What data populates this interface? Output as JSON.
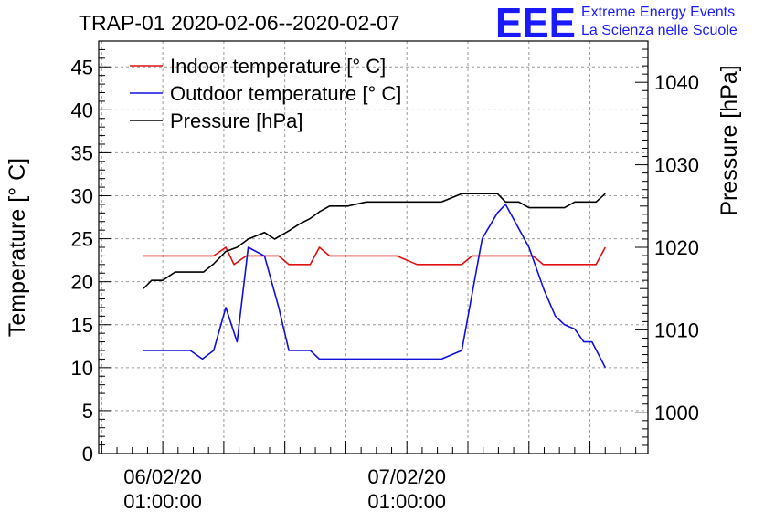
{
  "header": {
    "title": "TRAP-01 2020-02-06--2020-02-07",
    "logo_text": "EEE",
    "logo_line1": "Extreme Energy Events",
    "logo_line2": "La Scienza nelle Scuole"
  },
  "colors": {
    "indoor": "#e01010",
    "outdoor": "#1010e0",
    "pressure": "#000000",
    "logo": "#1a1aff"
  },
  "chart_data": {
    "type": "line",
    "title": "TRAP-01 2020-02-06--2020-02-07",
    "ylabel_left": "Temperature [° C]",
    "ylabel_right": "Pressure [hPa]",
    "ylim_left": [
      0,
      48
    ],
    "ylim_right": [
      995,
      1045
    ],
    "yticks_left": [
      "0",
      "5",
      "10",
      "15",
      "20",
      "25",
      "30",
      "35",
      "40",
      "45"
    ],
    "yticks_right": [
      "1000",
      "1010",
      "1020",
      "1030",
      "1040"
    ],
    "xticks": [
      {
        "t": 0,
        "line1": "06/02/20",
        "line2": "01:00:00"
      },
      {
        "t": 24,
        "line1": "07/02/20",
        "line2": "01:00:00"
      }
    ],
    "xlim": [
      -6.3,
      47.7
    ],
    "grid": true,
    "legend_position": "top-left",
    "legend": [
      {
        "label": "Indoor temperature [° C]",
        "series": "indoor"
      },
      {
        "label": "Outdoor temperature [° C]",
        "series": "outdoor"
      },
      {
        "label": "Pressure [hPa]",
        "series": "pressure"
      }
    ],
    "series": [
      {
        "name": "Indoor temperature [° C]",
        "key": "indoor",
        "axis": "left",
        "points": [
          [
            -1.9,
            23
          ],
          [
            5,
            23
          ],
          [
            6.2,
            24
          ],
          [
            7,
            22
          ],
          [
            8.2,
            23
          ],
          [
            11.4,
            23
          ],
          [
            12.4,
            22
          ],
          [
            14.5,
            22
          ],
          [
            15.4,
            24
          ],
          [
            16.4,
            23
          ],
          [
            23,
            23
          ],
          [
            25,
            22
          ],
          [
            29.4,
            22
          ],
          [
            30.4,
            23
          ],
          [
            36.4,
            23
          ],
          [
            37.4,
            22
          ],
          [
            42.6,
            22
          ],
          [
            43.5,
            24
          ]
        ]
      },
      {
        "name": "Outdoor temperature [° C]",
        "key": "outdoor",
        "axis": "left",
        "points": [
          [
            -1.9,
            12
          ],
          [
            2.7,
            12
          ],
          [
            3.9,
            11
          ],
          [
            5,
            12
          ],
          [
            6.2,
            17
          ],
          [
            7.3,
            13
          ],
          [
            8.4,
            24
          ],
          [
            10,
            23
          ],
          [
            11.4,
            17
          ],
          [
            12.4,
            12
          ],
          [
            14.5,
            12
          ],
          [
            15.4,
            11
          ],
          [
            27.4,
            11
          ],
          [
            29.4,
            12
          ],
          [
            31.4,
            25
          ],
          [
            32.9,
            28
          ],
          [
            33.7,
            29
          ],
          [
            36,
            24
          ],
          [
            37.5,
            19
          ],
          [
            38.6,
            16
          ],
          [
            39.5,
            15
          ],
          [
            40.5,
            14.5
          ],
          [
            41.4,
            13
          ],
          [
            42.2,
            13
          ],
          [
            43.5,
            10
          ]
        ]
      },
      {
        "name": "Pressure [hPa]",
        "key": "pressure",
        "axis": "right",
        "points": [
          [
            -1.9,
            1015
          ],
          [
            -1.1,
            1016
          ],
          [
            0,
            1016
          ],
          [
            1.2,
            1017
          ],
          [
            4,
            1017
          ],
          [
            5,
            1018
          ],
          [
            6.2,
            1019.5
          ],
          [
            7.3,
            1020
          ],
          [
            8.4,
            1021
          ],
          [
            10,
            1021.8
          ],
          [
            11,
            1021
          ],
          [
            12.4,
            1022
          ],
          [
            13.4,
            1022.8
          ],
          [
            14.5,
            1023.5
          ],
          [
            15.4,
            1024.3
          ],
          [
            16.4,
            1025
          ],
          [
            18.2,
            1025
          ],
          [
            20,
            1025.5
          ],
          [
            27.4,
            1025.5
          ],
          [
            29.4,
            1026.5
          ],
          [
            32.9,
            1026.5
          ],
          [
            33.7,
            1025.5
          ],
          [
            35,
            1025.5
          ],
          [
            36,
            1024.8
          ],
          [
            39.5,
            1024.8
          ],
          [
            40.5,
            1025.5
          ],
          [
            42.6,
            1025.5
          ],
          [
            43.5,
            1026.5
          ]
        ]
      }
    ]
  }
}
